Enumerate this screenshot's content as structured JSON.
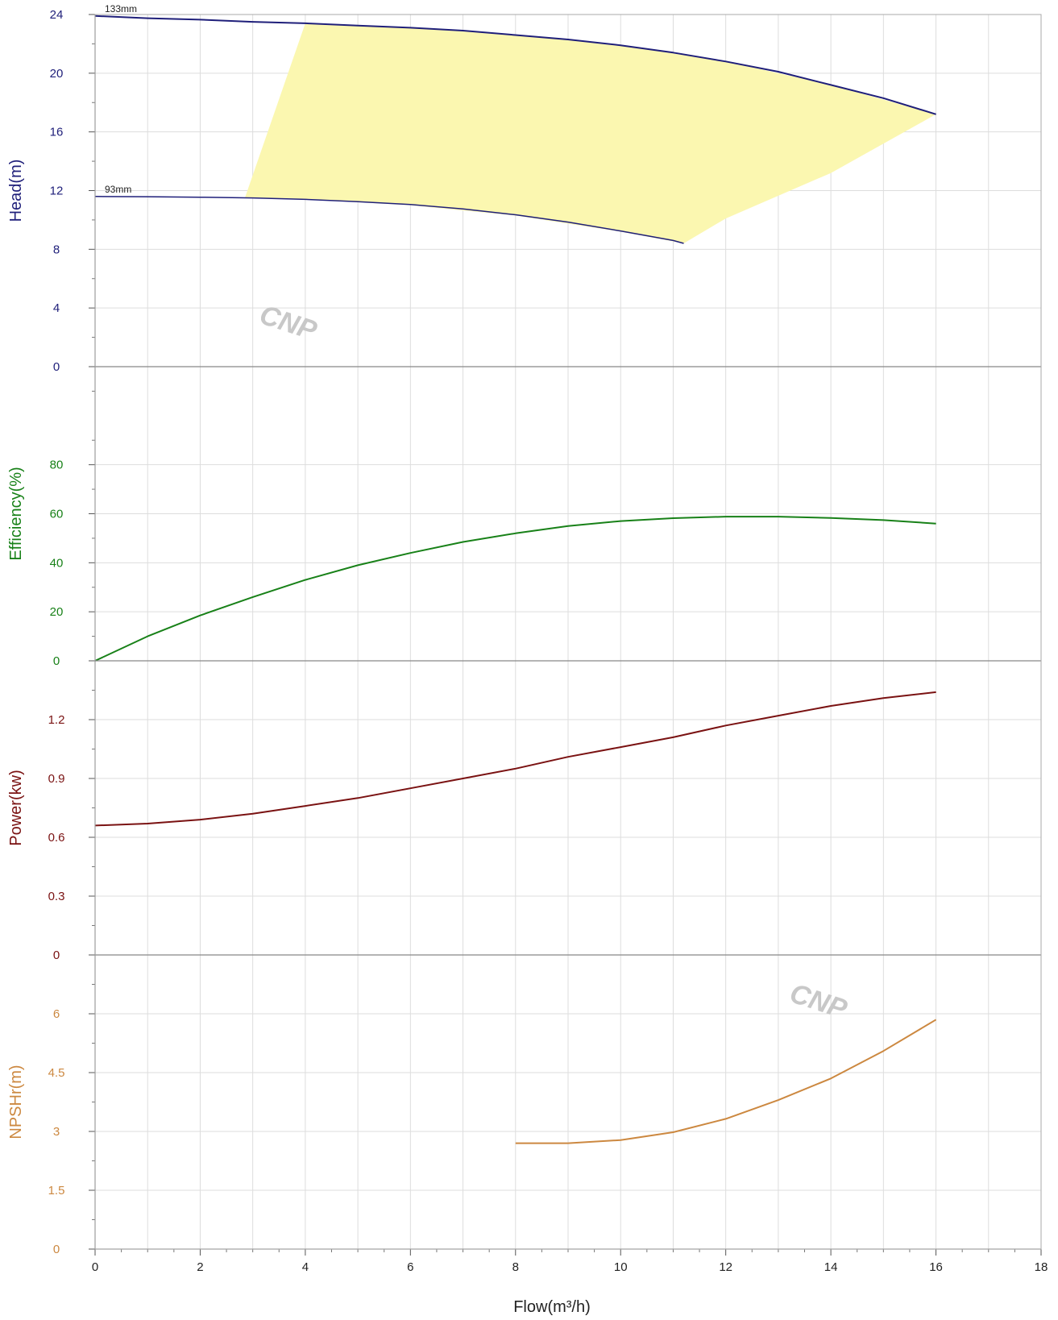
{
  "chart_data": {
    "type": "line",
    "x_axis": {
      "title": "Flow(m³/h)",
      "range": [
        0,
        18
      ],
      "ticks": [
        "0",
        "2",
        "4",
        "6",
        "8",
        "10",
        "12",
        "14",
        "16",
        "18"
      ]
    },
    "watermark": "CNP",
    "panels": [
      {
        "name": "head",
        "ylabel": "Head(m)",
        "color": "#1f1f7a",
        "ylim": [
          0,
          24
        ],
        "ticks": [
          0,
          4,
          8,
          12,
          16,
          20,
          24
        ],
        "tick_labels": [
          "0",
          "4",
          "8",
          "12",
          "16",
          "20",
          "24"
        ],
        "operating_region_color": "#fbf7b0",
        "operating_region": [
          [
            4.0,
            23.4
          ],
          [
            6.0,
            23.1
          ],
          [
            8.0,
            22.6
          ],
          [
            10.0,
            21.9
          ],
          [
            12.0,
            20.8
          ],
          [
            14.0,
            19.2
          ],
          [
            16.0,
            17.2
          ],
          [
            14.0,
            13.2
          ],
          [
            12.0,
            10.1
          ],
          [
            11.2,
            8.4
          ],
          [
            10.0,
            9.2
          ],
          [
            8.0,
            10.3
          ],
          [
            6.0,
            11.0
          ],
          [
            4.0,
            11.4
          ],
          [
            2.85,
            11.5
          ]
        ],
        "series": [
          {
            "name": "133mm",
            "x": [
              0,
              1,
              2,
              3,
              4,
              5,
              6,
              7,
              8,
              9,
              10,
              11,
              12,
              13,
              14,
              15,
              16
            ],
            "values": [
              23.9,
              23.75,
              23.65,
              23.5,
              23.4,
              23.25,
              23.1,
              22.9,
              22.6,
              22.3,
              21.9,
              21.4,
              20.8,
              20.1,
              19.2,
              18.3,
              17.2
            ]
          },
          {
            "name": "93mm",
            "x": [
              0,
              1,
              2,
              3,
              4,
              5,
              6,
              7,
              8,
              9,
              10,
              11,
              11.2
            ],
            "values": [
              11.6,
              11.58,
              11.55,
              11.5,
              11.4,
              11.25,
              11.05,
              10.75,
              10.35,
              9.85,
              9.25,
              8.6,
              8.4
            ]
          }
        ]
      },
      {
        "name": "efficiency",
        "ylabel": "Efficiency(%)",
        "color": "#188118",
        "ylim": [
          0,
          120
        ],
        "ticks": [
          0,
          20,
          40,
          60,
          80
        ],
        "tick_labels": [
          "0",
          "20",
          "40",
          "60",
          "80"
        ],
        "series": [
          {
            "x": [
              0,
              1,
              2,
              3,
              4,
              5,
              6,
              7,
              8,
              9,
              10,
              11,
              12,
              13,
              14,
              15,
              16
            ],
            "values": [
              0,
              10,
              18.5,
              26,
              33,
              39,
              44,
              48.5,
              52,
              55,
              57,
              58.2,
              58.8,
              58.8,
              58.3,
              57.4,
              56
            ]
          }
        ]
      },
      {
        "name": "power",
        "ylabel": "Power(kw)",
        "color": "#7a1212",
        "ylim": [
          0,
          1.5
        ],
        "ticks": [
          0,
          0.3,
          0.6,
          0.9,
          1.2
        ],
        "tick_labels": [
          "0",
          "0.3",
          "0.6",
          "0.9",
          "1.2"
        ],
        "series": [
          {
            "x": [
              0,
              1,
              2,
              3,
              4,
              5,
              6,
              7,
              8,
              9,
              10,
              11,
              12,
              13,
              14,
              15,
              16
            ],
            "values": [
              0.66,
              0.67,
              0.69,
              0.72,
              0.76,
              0.8,
              0.85,
              0.9,
              0.95,
              1.01,
              1.06,
              1.11,
              1.17,
              1.22,
              1.27,
              1.31,
              1.34
            ]
          }
        ]
      },
      {
        "name": "npshr",
        "ylabel": "NPSHr(m)",
        "color": "#cc8840",
        "ylim": [
          0,
          7.5
        ],
        "ticks": [
          0,
          1.5,
          3,
          4.5,
          6
        ],
        "tick_labels": [
          "0",
          "1.5",
          "3",
          "4.5",
          "6"
        ],
        "series": [
          {
            "x": [
              8,
              9,
              10,
              11,
              12,
              13,
              14,
              15,
              16
            ],
            "values": [
              2.7,
              2.7,
              2.78,
              2.98,
              3.32,
              3.8,
              4.35,
              5.05,
              5.85
            ]
          }
        ]
      }
    ]
  }
}
